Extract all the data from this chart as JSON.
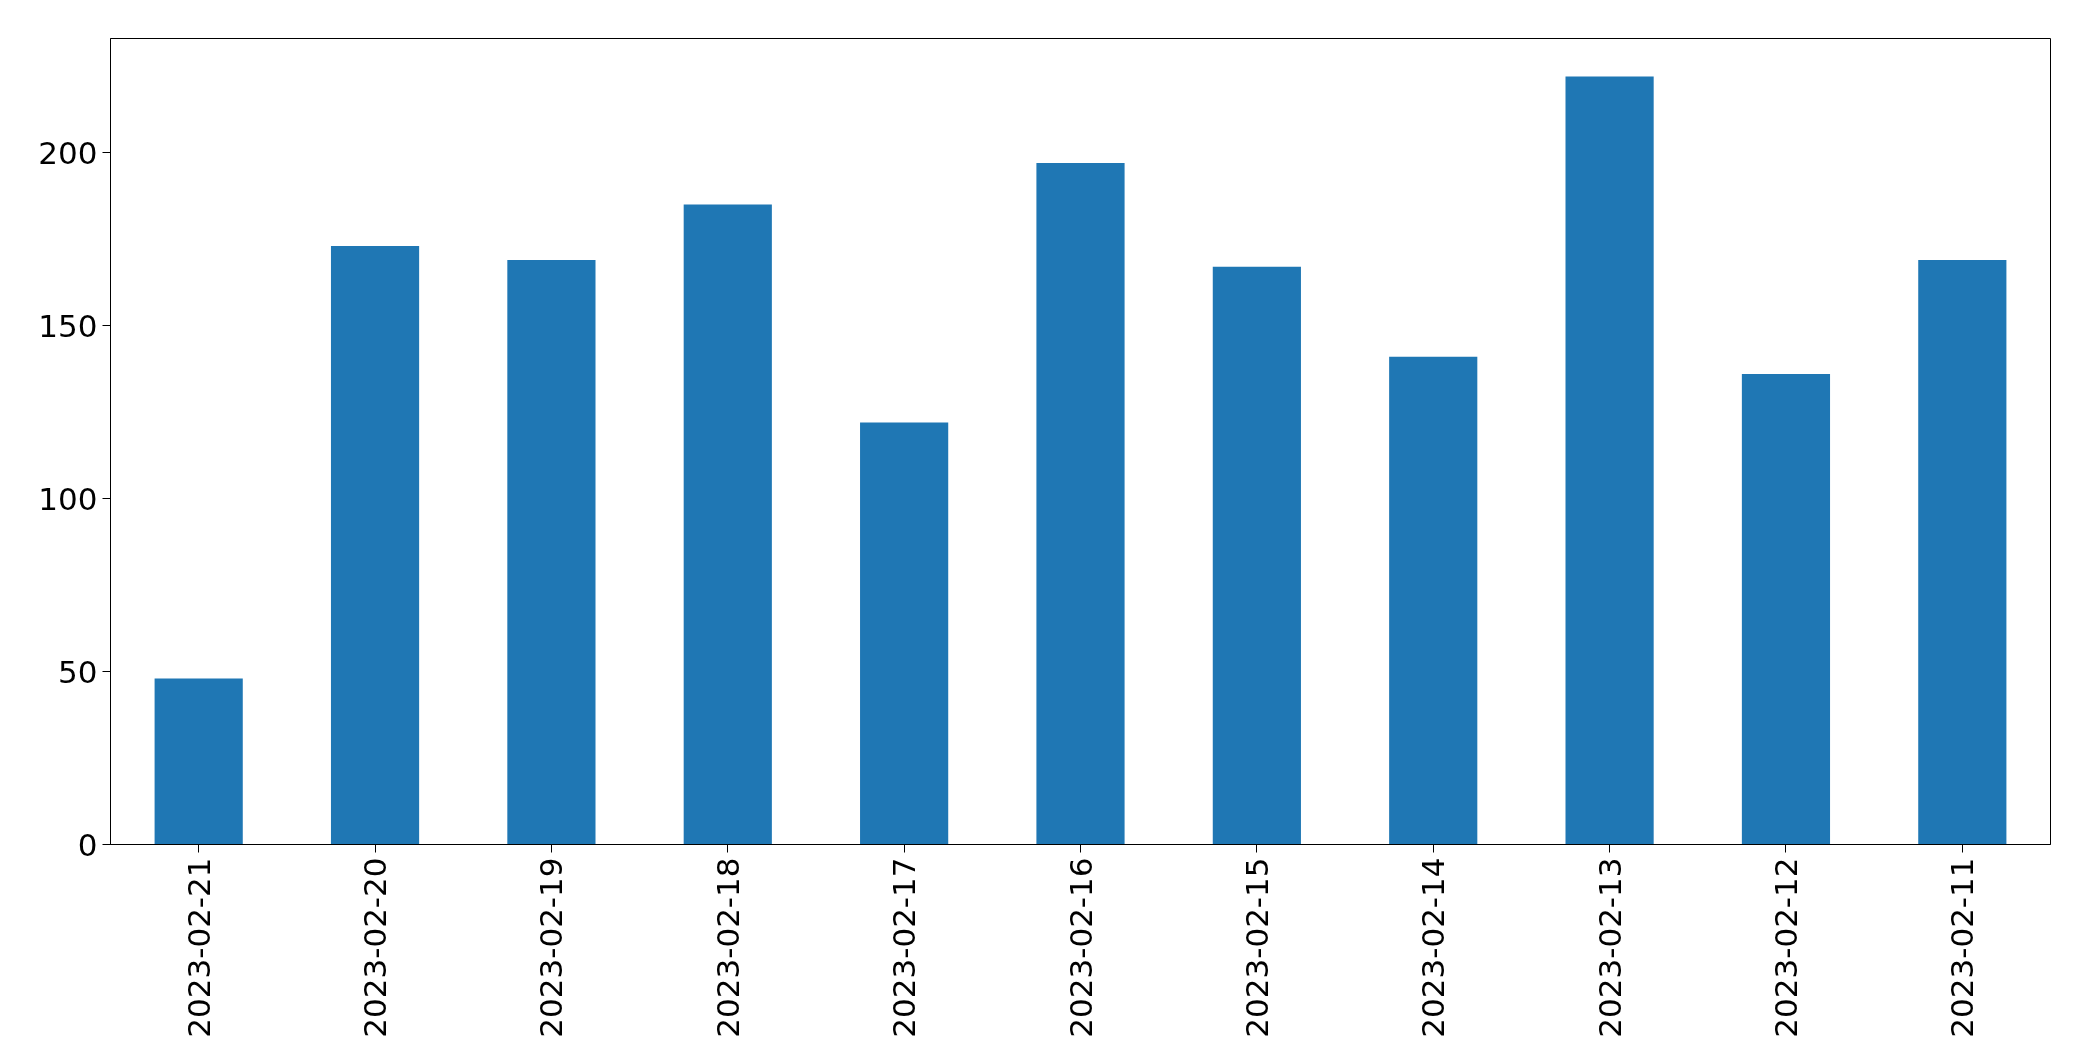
{
  "chart_data": {
    "type": "bar",
    "categories": [
      "2023-02-21",
      "2023-02-20",
      "2023-02-19",
      "2023-02-18",
      "2023-02-17",
      "2023-02-16",
      "2023-02-15",
      "2023-02-14",
      "2023-02-13",
      "2023-02-12",
      "2023-02-11"
    ],
    "values": [
      48,
      173,
      169,
      185,
      122,
      197,
      167,
      141,
      222,
      136,
      169
    ],
    "color": "#1f77b4",
    "ylim": [
      0,
      233
    ],
    "yticks": [
      0,
      50,
      100,
      150,
      200
    ],
    "grid": false
  }
}
